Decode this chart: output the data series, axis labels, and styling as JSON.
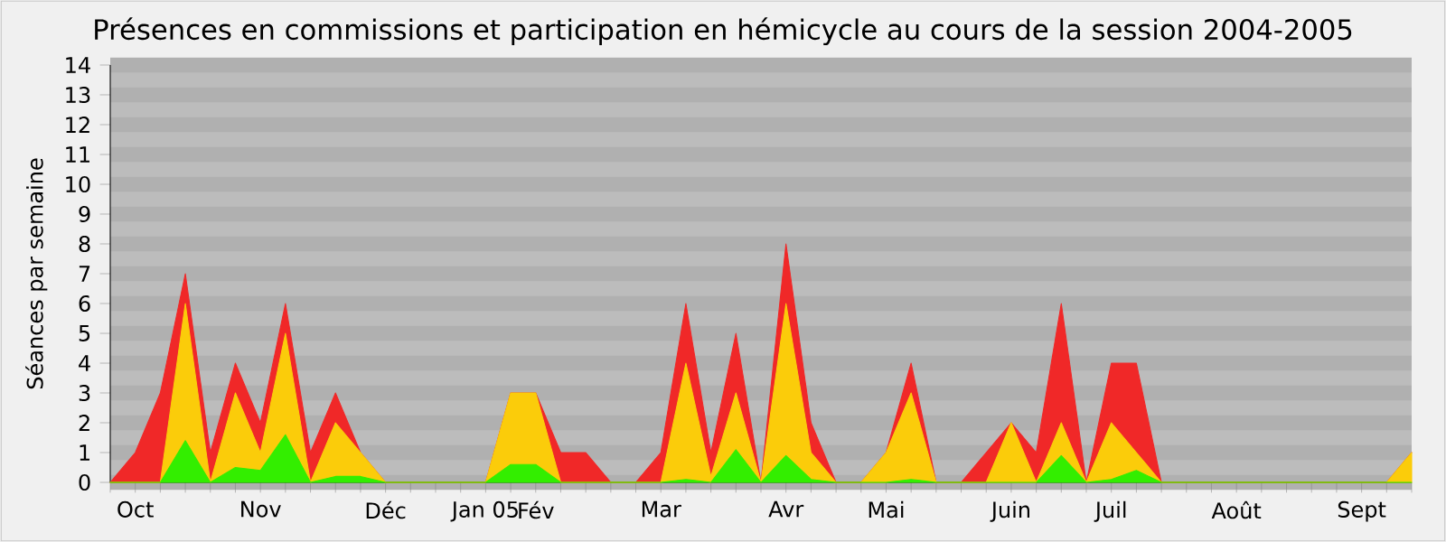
{
  "chart_data": {
    "type": "area",
    "title": "Présences en commissions et participation en hémicycle au cours de la session 2004-2005",
    "ylabel": "Séances par semaine",
    "stacked": true,
    "grid": "y",
    "categories": [
      null,
      "Oct",
      null,
      null,
      null,
      null,
      "Nov",
      null,
      null,
      null,
      null,
      "Déc",
      null,
      null,
      null,
      "Jan 05",
      null,
      "Fév",
      null,
      null,
      null,
      null,
      "Mar",
      null,
      null,
      null,
      null,
      "Avr",
      null,
      null,
      null,
      "Mai",
      null,
      null,
      null,
      null,
      "Juin",
      null,
      null,
      null,
      "Juil",
      null,
      null,
      null,
      null,
      "Août",
      null,
      null,
      null,
      null,
      "Sept",
      null,
      null
    ],
    "ylim": [
      0,
      14
    ],
    "yticks": [
      0,
      1,
      2,
      3,
      4,
      5,
      6,
      7,
      8,
      9,
      10,
      11,
      12,
      13,
      14
    ],
    "series": [
      {
        "color": "#33ee00",
        "values": [
          0,
          0,
          0,
          1.4,
          0,
          0.5,
          0.4,
          1.6,
          0,
          0.2,
          0.2,
          0,
          0,
          0,
          0,
          0,
          0.6,
          0.6,
          0,
          0,
          0,
          0,
          0,
          0.1,
          0,
          1.1,
          0,
          0.9,
          0.1,
          0,
          0,
          0,
          0.1,
          0,
          0,
          0,
          0,
          0,
          0.9,
          0,
          0.1,
          0.4,
          0,
          0,
          0,
          0,
          0,
          0,
          0,
          0,
          0,
          0,
          0
        ]
      },
      {
        "color": "#fbcc0a",
        "values": [
          0,
          0,
          0,
          4.6,
          0,
          2.5,
          0.6,
          3.4,
          0,
          1.8,
          0.8,
          0,
          0,
          0,
          0,
          0,
          2.4,
          2.4,
          0,
          0,
          0,
          0,
          0,
          3.9,
          0.2,
          1.9,
          0,
          5.1,
          0.9,
          0,
          0,
          1,
          2.9,
          0,
          0,
          0,
          2,
          0,
          1.1,
          0,
          1.9,
          0.6,
          0,
          0,
          0,
          0,
          0,
          0,
          0,
          0,
          0,
          0,
          1
        ]
      },
      {
        "color": "#f02828",
        "values": [
          0,
          1,
          3,
          1,
          1,
          1,
          1,
          1,
          1,
          1,
          0,
          0,
          0,
          0,
          0,
          0,
          0,
          0,
          1,
          1,
          0,
          0,
          1,
          2,
          0.8,
          2,
          0,
          2,
          1,
          0,
          0,
          0,
          1,
          0,
          0,
          1,
          0,
          1,
          4,
          0,
          2,
          3,
          0,
          0,
          0,
          0,
          0,
          0,
          0,
          0,
          0,
          0,
          0
        ]
      }
    ]
  }
}
